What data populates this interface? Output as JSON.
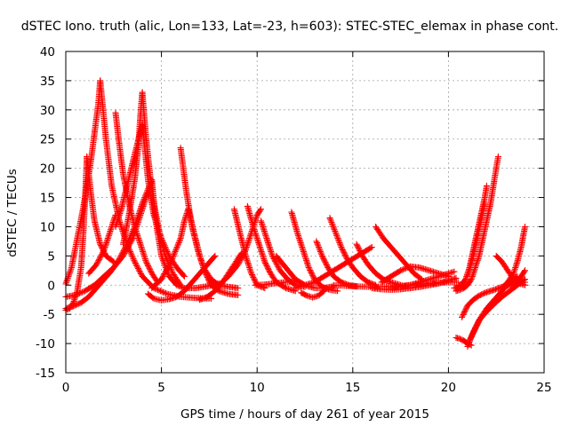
{
  "chart_data": {
    "type": "scatter",
    "title": "dSTEC Iono. truth (alic, Lon=133, Lat=-23, h=603): STEC-STEC_elemax in phase cont.",
    "xlabel": "GPS time / hours of day 261 of year 2015",
    "ylabel": "dSTEC  / TECUs",
    "xlim": [
      0,
      25
    ],
    "ylim": [
      -15,
      40
    ],
    "xticks": [
      0,
      5,
      10,
      15,
      20,
      25
    ],
    "yticks": [
      -15,
      -10,
      -5,
      0,
      5,
      10,
      15,
      20,
      25,
      30,
      35,
      40
    ],
    "grid": true,
    "marker": "plus",
    "color": "#ff0000",
    "series": [
      {
        "x": [
          0.0,
          0.3,
          0.6,
          0.9,
          1.1,
          1.3,
          1.5,
          1.7,
          1.8
        ],
        "y": [
          0.2,
          3,
          8,
          13,
          17,
          21,
          26,
          31,
          35
        ]
      },
      {
        "x": [
          1.8,
          2.1,
          2.4,
          2.8,
          3.2,
          3.6,
          4.0,
          4.6,
          5.3,
          6.0,
          6.8,
          7.6
        ],
        "y": [
          35,
          25,
          17,
          11,
          7,
          4,
          1.5,
          -0.5,
          -1.5,
          -2,
          -2.2,
          -2.3
        ]
      },
      {
        "x": [
          0.0,
          0.2,
          0.4,
          0.6,
          0.8,
          0.9,
          1.0,
          1.1
        ],
        "y": [
          -4.3,
          -4,
          -3,
          -1,
          3,
          8,
          14,
          22
        ]
      },
      {
        "x": [
          1.1,
          1.3,
          1.5,
          1.8,
          2.1,
          2.5
        ],
        "y": [
          22,
          16,
          11,
          7,
          5,
          4
        ]
      },
      {
        "x": [
          0.0,
          0.4,
          0.8,
          1.2,
          1.6,
          2.0,
          2.4,
          2.8,
          3.2,
          3.6,
          4.0,
          4.5
        ],
        "y": [
          -4,
          -3.6,
          -3,
          -2,
          -0.5,
          1,
          2.5,
          4.5,
          7,
          10,
          14,
          18
        ]
      },
      {
        "x": [
          4.5,
          4.7,
          5.0,
          5.4,
          5.8,
          6.2,
          6.8,
          7.4,
          8.0
        ],
        "y": [
          18,
          11,
          5,
          1.5,
          0,
          -0.5,
          -0.5,
          -0.2,
          0.3
        ]
      },
      {
        "x": [
          0.0,
          0.5,
          1.0,
          1.5,
          2.0,
          2.5,
          3.0,
          3.5,
          3.8,
          4.1,
          4.3
        ],
        "y": [
          -2,
          -1.7,
          -1,
          0,
          1.5,
          3,
          5,
          8,
          11,
          14,
          16
        ]
      },
      {
        "x": [
          1.2,
          1.6,
          2.0,
          2.4,
          2.6
        ],
        "y": [
          2,
          3.5,
          6,
          10,
          12
        ]
      },
      {
        "x": [
          2.6,
          2.8,
          3.0,
          3.3,
          3.6,
          3.9,
          4.2,
          4.5,
          4.8
        ],
        "y": [
          29.5,
          24,
          19,
          14,
          10,
          7,
          4,
          2,
          0.5
        ]
      },
      {
        "x": [
          2.6,
          2.9,
          3.2,
          3.5,
          3.8,
          4.0
        ],
        "y": [
          10,
          13,
          17,
          21,
          25,
          27.5
        ]
      },
      {
        "x": [
          4.0,
          4.3,
          4.6,
          5.0,
          5.4,
          5.8,
          6.2
        ],
        "y": [
          27.5,
          18,
          12,
          8,
          5,
          3,
          1.5
        ]
      },
      {
        "x": [
          3.0,
          3.3,
          3.6,
          3.8,
          3.9,
          4.0
        ],
        "y": [
          7,
          12,
          18,
          24,
          29,
          33
        ]
      },
      {
        "x": [
          4.0,
          4.2,
          4.4,
          4.6,
          4.9,
          5.2,
          5.6,
          6.0
        ],
        "y": [
          33,
          25,
          19,
          14,
          9,
          5,
          2,
          0
        ]
      },
      {
        "x": [
          4.3,
          4.6,
          5.0,
          5.4,
          5.8,
          6.2,
          6.6,
          7.0,
          7.4,
          7.8
        ],
        "y": [
          -1.5,
          -2.3,
          -2.6,
          -2.4,
          -2,
          -1,
          0.5,
          2,
          3.5,
          5
        ]
      },
      {
        "x": [
          6.0,
          6.3,
          6.6,
          6.9,
          7.2,
          7.6,
          8.0,
          8.5,
          9.0
        ],
        "y": [
          23.5,
          16,
          10,
          6,
          3,
          1,
          0,
          -0.3,
          -0.5
        ]
      },
      {
        "x": [
          4.5,
          5.0,
          5.5,
          6.0,
          6.2,
          6.4
        ],
        "y": [
          -0.5,
          1,
          4,
          8,
          11,
          13
        ]
      },
      {
        "x": [
          6.4,
          6.7,
          7.0,
          7.3,
          7.6,
          8.0,
          8.5,
          9.0
        ],
        "y": [
          13,
          9,
          5,
          2,
          0,
          -1,
          -1.5,
          -1.7
        ]
      },
      {
        "x": [
          7.0,
          7.4,
          7.8,
          8.2,
          8.6,
          9.0,
          9.2
        ],
        "y": [
          -2.5,
          -2,
          -1,
          0.5,
          2.5,
          4.5,
          5.5
        ]
      },
      {
        "x": [
          8.0,
          8.5,
          9.0,
          9.4,
          9.6,
          9.8
        ],
        "y": [
          0,
          1.5,
          3.5,
          6,
          8,
          10
        ]
      },
      {
        "x": [
          9.8,
          10.0,
          10.2
        ],
        "y": [
          10,
          12,
          13
        ]
      },
      {
        "x": [
          8.8,
          9.1,
          9.4,
          9.7,
          10.0,
          10.4
        ],
        "y": [
          13,
          9,
          5,
          2,
          0,
          -0.5
        ]
      },
      {
        "x": [
          9.5,
          9.8,
          10.1,
          10.4,
          10.7,
          11.0,
          11.5,
          12.0
        ],
        "y": [
          13.5,
          10,
          7,
          4,
          2,
          0.5,
          -0.5,
          -1
        ]
      },
      {
        "x": [
          10.2,
          10.5,
          10.8,
          11.2,
          11.6,
          12.0,
          12.5
        ],
        "y": [
          11,
          8,
          5,
          2.5,
          1,
          0,
          -0.3
        ]
      },
      {
        "x": [
          9.9,
          10.4,
          10.9,
          11.5,
          12.0
        ],
        "y": [
          0,
          0.1,
          0.3,
          0.5,
          0.6
        ]
      },
      {
        "x": [
          11.8,
          12.1,
          12.4,
          12.7,
          13.0,
          13.4,
          13.8,
          14.2
        ],
        "y": [
          12.5,
          9,
          6,
          3,
          1,
          -0.3,
          -0.8,
          -1
        ]
      },
      {
        "x": [
          11.0,
          11.5,
          12.0,
          12.5,
          13.0,
          13.5,
          14.0
        ],
        "y": [
          5,
          3,
          1,
          0,
          -0.5,
          -0.5,
          -0.2
        ]
      },
      {
        "x": [
          12.0,
          12.5,
          13.0,
          13.5,
          14.0,
          14.5,
          15.0,
          15.5,
          16.0
        ],
        "y": [
          -0.5,
          0,
          0.5,
          1.5,
          2.5,
          3.5,
          4.5,
          5.5,
          6.5
        ]
      },
      {
        "x": [
          12.3,
          12.6,
          12.9,
          13.2,
          13.5
        ],
        "y": [
          -1.3,
          -1.8,
          -2.1,
          -1.8,
          -1
        ]
      },
      {
        "x": [
          13.1,
          13.4,
          13.7,
          14.0,
          14.4,
          14.8,
          15.2
        ],
        "y": [
          7.5,
          5,
          3,
          1.5,
          0.5,
          0,
          -0.2
        ]
      },
      {
        "x": [
          13.8,
          14.1,
          14.4,
          14.7,
          15.0,
          15.4,
          15.8,
          16.2
        ],
        "y": [
          11.5,
          9,
          6.5,
          4.5,
          3,
          1.5,
          0.5,
          0
        ]
      },
      {
        "x": [
          15.2,
          15.5,
          15.8,
          16.2,
          16.6,
          17.0,
          17.5
        ],
        "y": [
          7,
          5,
          3.5,
          2,
          1,
          0.5,
          0
        ]
      },
      {
        "x": [
          16.2,
          16.6,
          17.0,
          17.4,
          17.8,
          18.2,
          18.6
        ],
        "y": [
          10,
          8,
          6.5,
          5,
          3.5,
          2,
          1
        ]
      },
      {
        "x": [
          14.0,
          15.0,
          16.0,
          17.0,
          18.0,
          19.0,
          20.0,
          20.5
        ],
        "y": [
          0,
          -0.2,
          -0.3,
          -0.2,
          0,
          0.3,
          0.5,
          0.5
        ]
      },
      {
        "x": [
          16.5,
          17.0,
          17.5,
          18.0,
          18.5,
          19.0,
          19.5,
          20.0
        ],
        "y": [
          0.5,
          1.5,
          2.5,
          3.2,
          3,
          2.5,
          2,
          1.5
        ]
      },
      {
        "x": [
          17.0,
          17.5,
          18.0,
          18.5,
          19.0,
          19.5,
          20.0,
          20.3
        ],
        "y": [
          -0.5,
          -0.3,
          0,
          0.5,
          1,
          1.5,
          2,
          2.3
        ]
      },
      {
        "x": [
          16.0,
          16.5,
          17.0,
          17.5,
          18.0,
          18.5,
          19.0,
          19.5,
          20.0,
          20.4
        ],
        "y": [
          -0.5,
          -0.7,
          -0.8,
          -0.7,
          -0.5,
          -0.3,
          0,
          0.3,
          0.8,
          1.2
        ]
      },
      {
        "x": [
          20.3,
          20.5,
          20.7,
          20.9,
          21.1,
          21.3,
          21.5,
          21.7,
          21.9,
          22.0
        ],
        "y": [
          -0.5,
          -0.4,
          0,
          1,
          3,
          6,
          9,
          12,
          15,
          17
        ]
      },
      {
        "x": [
          20.4,
          20.6,
          20.8,
          21.0,
          21.2,
          21.4,
          21.6,
          21.8,
          22.0,
          22.2,
          22.4,
          22.6
        ],
        "y": [
          -1,
          -0.8,
          -0.5,
          0,
          1,
          3,
          5,
          8,
          11,
          14,
          18,
          22
        ]
      },
      {
        "x": [
          20.5,
          20.7,
          20.9,
          21.1,
          21.3,
          21.5,
          21.7,
          21.9
        ],
        "y": [
          -0.2,
          0.2,
          1,
          2.5,
          5,
          8,
          11,
          14
        ]
      },
      {
        "x": [
          20.4,
          20.6,
          20.8,
          21.0,
          21.2
        ],
        "y": [
          -9,
          -9.2,
          -9.5,
          -10,
          -10.3
        ]
      },
      {
        "x": [
          20.7,
          21.0,
          21.3,
          21.6,
          22.0,
          22.4,
          22.8,
          23.2,
          23.6,
          24.0
        ],
        "y": [
          -5.5,
          -3.5,
          -2.5,
          -1.8,
          -1.2,
          -0.8,
          -0.3,
          0,
          0.3,
          0.5
        ]
      },
      {
        "x": [
          21.0,
          21.3,
          21.6,
          22.0,
          22.4,
          22.8,
          23.2,
          23.6,
          24.0
        ],
        "y": [
          -10.5,
          -8,
          -6,
          -4.5,
          -3.2,
          -2,
          -1,
          0,
          1
        ]
      },
      {
        "x": [
          21.1,
          21.4,
          21.7,
          22.0,
          22.4,
          22.8,
          23.2,
          23.6
        ],
        "y": [
          -9.5,
          -7.5,
          -5.5,
          -4,
          -2.5,
          -1,
          0.5,
          1.5
        ]
      },
      {
        "x": [
          22.5,
          22.8,
          23.1,
          23.4,
          23.7,
          24.0
        ],
        "y": [
          5,
          4,
          2.5,
          1,
          0.3,
          0
        ]
      },
      {
        "x": [
          22.8,
          23.1,
          23.4,
          23.6,
          23.8,
          24.0
        ],
        "y": [
          -0.5,
          0.5,
          2,
          4,
          6.5,
          10
        ]
      },
      {
        "x": [
          23.0,
          23.3,
          23.6,
          23.8,
          24.0
        ],
        "y": [
          0,
          0.3,
          0.8,
          1.5,
          2.5
        ]
      }
    ]
  }
}
